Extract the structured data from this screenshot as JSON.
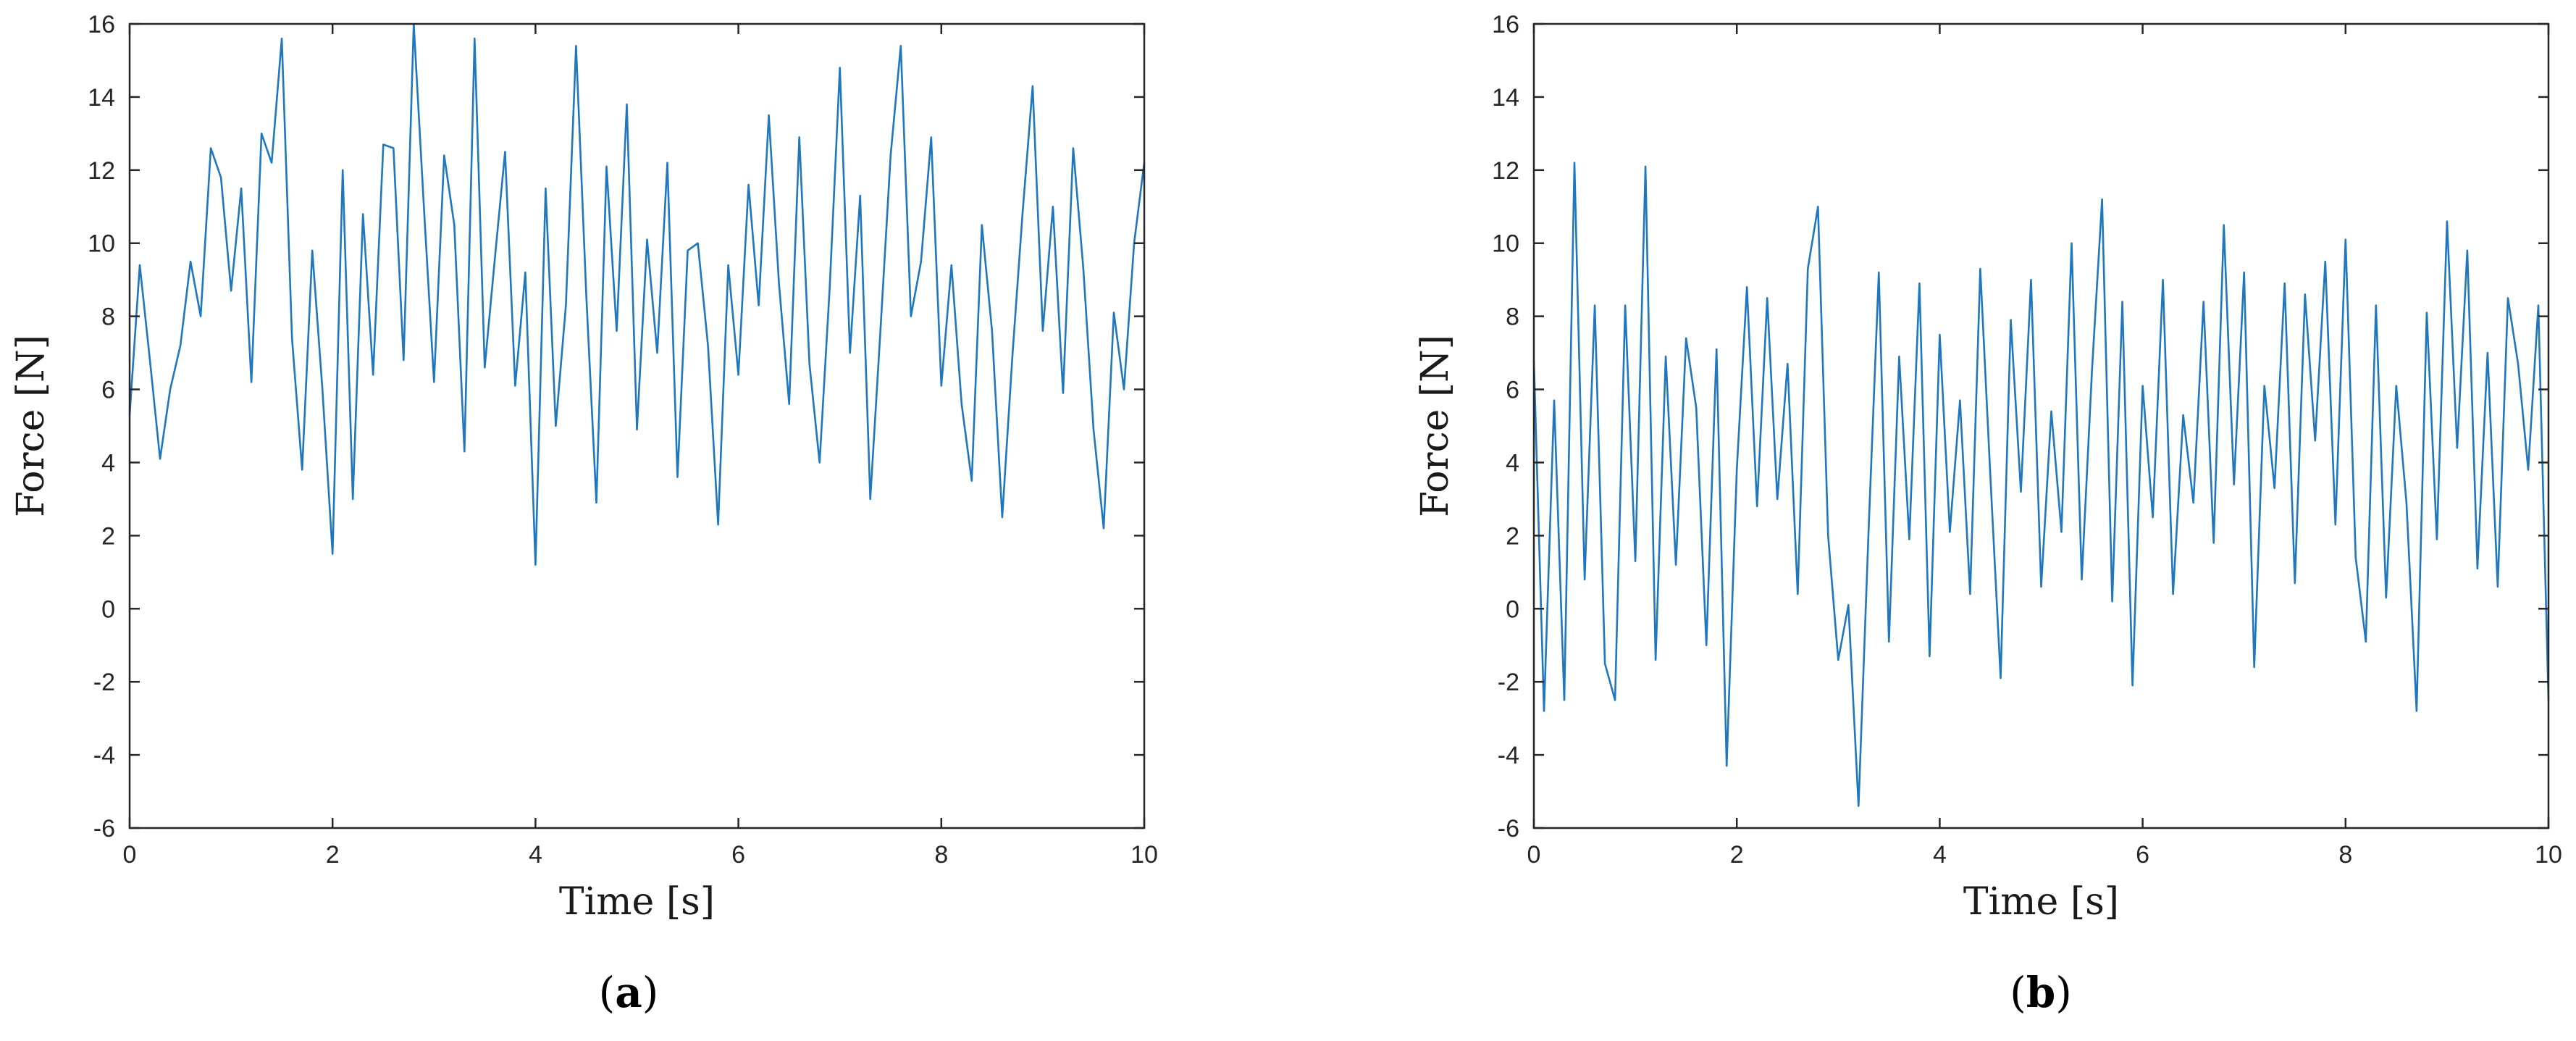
{
  "chart_data": [
    {
      "type": "line",
      "panel_label": "(a)",
      "panel_letter": "a",
      "xlabel": "Time [s]",
      "ylabel": "Force [N]",
      "xlim": [
        0,
        10
      ],
      "ylim": [
        -6,
        16
      ],
      "xticks": [
        0,
        2,
        4,
        6,
        8,
        10
      ],
      "yticks": [
        -6,
        -4,
        -2,
        0,
        2,
        4,
        6,
        8,
        10,
        12,
        14,
        16
      ],
      "grid": false,
      "color": "#1f77c0",
      "series": [
        {
          "x": [
            0.0,
            0.1,
            0.2,
            0.3,
            0.4,
            0.5,
            0.6,
            0.7,
            0.8,
            0.9,
            1.0,
            1.1,
            1.2,
            1.3,
            1.4,
            1.5,
            1.6,
            1.7,
            1.8,
            1.9,
            2.0,
            2.1,
            2.2,
            2.3,
            2.4,
            2.5,
            2.6,
            2.7,
            2.8,
            2.9,
            3.0,
            3.1,
            3.2,
            3.3,
            3.4,
            3.5,
            3.6,
            3.7,
            3.8,
            3.9,
            4.0,
            4.1,
            4.2,
            4.3,
            4.4,
            4.5,
            4.6,
            4.7,
            4.8,
            4.9,
            5.0,
            5.1,
            5.2,
            5.3,
            5.4,
            5.5,
            5.6,
            5.7,
            5.8,
            5.9,
            6.0,
            6.1,
            6.2,
            6.3,
            6.4,
            6.5,
            6.6,
            6.7,
            6.8,
            6.9,
            7.0,
            7.1,
            7.2,
            7.3,
            7.4,
            7.5,
            7.6,
            7.7,
            7.8,
            7.9,
            8.0,
            8.1,
            8.2,
            8.3,
            8.4,
            8.5,
            8.6,
            8.7,
            8.8,
            8.9,
            9.0,
            9.1,
            9.2,
            9.3,
            9.4,
            9.5,
            9.6,
            9.7,
            9.8,
            9.9,
            10.0
          ],
          "values": [
            5.3,
            9.4,
            6.8,
            4.1,
            6.0,
            7.2,
            9.5,
            8.0,
            12.6,
            11.8,
            8.7,
            11.5,
            6.2,
            13.0,
            12.2,
            15.6,
            7.4,
            3.8,
            9.8,
            6.0,
            1.5,
            12.0,
            3.0,
            10.8,
            6.4,
            12.7,
            12.6,
            6.8,
            16.0,
            11.0,
            6.2,
            12.4,
            10.5,
            4.3,
            15.6,
            6.6,
            9.6,
            12.5,
            6.1,
            9.2,
            1.2,
            11.5,
            5.0,
            8.3,
            15.4,
            8.6,
            2.9,
            12.1,
            7.6,
            13.8,
            4.9,
            10.1,
            7.0,
            12.2,
            3.6,
            9.8,
            10.0,
            7.2,
            2.3,
            9.4,
            6.4,
            11.6,
            8.3,
            13.5,
            8.9,
            5.6,
            12.9,
            6.7,
            4.0,
            8.8,
            14.8,
            7.0,
            11.3,
            3.0,
            7.6,
            12.4,
            15.4,
            8.0,
            9.5,
            12.9,
            6.1,
            9.4,
            5.6,
            3.5,
            10.5,
            7.6,
            2.5,
            6.9,
            10.8,
            14.3,
            7.6,
            11.0,
            5.9,
            12.6,
            9.3,
            4.9,
            2.2,
            8.1,
            6.0,
            10.0,
            12.2
          ]
        }
      ]
    },
    {
      "type": "line",
      "panel_label": "(b)",
      "panel_letter": "b",
      "xlabel": "Time [s]",
      "ylabel": "Force [N]",
      "xlim": [
        0,
        10
      ],
      "ylim": [
        -6,
        16
      ],
      "xticks": [
        0,
        2,
        4,
        6,
        8,
        10
      ],
      "yticks": [
        -6,
        -4,
        -2,
        0,
        2,
        4,
        6,
        8,
        10,
        12,
        14,
        16
      ],
      "grid": false,
      "color": "#1f77c0",
      "series": [
        {
          "x": [
            0.0,
            0.1,
            0.2,
            0.3,
            0.4,
            0.5,
            0.6,
            0.7,
            0.8,
            0.9,
            1.0,
            1.1,
            1.2,
            1.3,
            1.4,
            1.5,
            1.6,
            1.7,
            1.8,
            1.9,
            2.0,
            2.1,
            2.2,
            2.3,
            2.4,
            2.5,
            2.6,
            2.7,
            2.8,
            2.9,
            3.0,
            3.1,
            3.2,
            3.3,
            3.4,
            3.5,
            3.6,
            3.7,
            3.8,
            3.9,
            4.0,
            4.1,
            4.2,
            4.3,
            4.4,
            4.5,
            4.6,
            4.7,
            4.8,
            4.9,
            5.0,
            5.1,
            5.2,
            5.3,
            5.4,
            5.5,
            5.6,
            5.7,
            5.8,
            5.9,
            6.0,
            6.1,
            6.2,
            6.3,
            6.4,
            6.5,
            6.6,
            6.7,
            6.8,
            6.9,
            7.0,
            7.1,
            7.2,
            7.3,
            7.4,
            7.5,
            7.6,
            7.7,
            7.8,
            7.9,
            8.0,
            8.1,
            8.2,
            8.3,
            8.4,
            8.5,
            8.6,
            8.7,
            8.8,
            8.9,
            9.0,
            9.1,
            9.2,
            9.3,
            9.4,
            9.5,
            9.6,
            9.7,
            9.8,
            9.9,
            10.0
          ],
          "values": [
            6.8,
            -2.8,
            5.7,
            -2.5,
            12.2,
            0.8,
            8.3,
            -1.5,
            -2.5,
            8.3,
            1.3,
            12.1,
            -1.4,
            6.9,
            1.2,
            7.4,
            5.5,
            -1.0,
            7.1,
            -4.3,
            3.8,
            8.8,
            2.8,
            8.5,
            3.0,
            6.7,
            0.4,
            9.3,
            11.0,
            2.0,
            -1.4,
            0.1,
            -5.4,
            2.2,
            9.2,
            -0.9,
            6.9,
            1.9,
            8.9,
            -1.3,
            7.5,
            2.1,
            5.7,
            0.4,
            9.3,
            3.6,
            -1.9,
            7.9,
            3.2,
            9.0,
            0.6,
            5.4,
            2.1,
            10.0,
            0.8,
            6.5,
            11.2,
            0.2,
            8.4,
            -2.1,
            6.1,
            2.5,
            9.0,
            0.4,
            5.3,
            2.9,
            8.4,
            1.8,
            10.5,
            3.4,
            9.2,
            -1.6,
            6.1,
            3.3,
            8.9,
            0.7,
            8.6,
            4.6,
            9.5,
            2.3,
            10.1,
            1.4,
            -0.9,
            8.3,
            0.3,
            6.1,
            2.9,
            -2.8,
            8.1,
            1.9,
            10.6,
            4.4,
            9.8,
            1.1,
            7.0,
            0.6,
            8.5,
            6.7,
            3.8,
            8.3,
            -2.5
          ]
        }
      ]
    }
  ]
}
